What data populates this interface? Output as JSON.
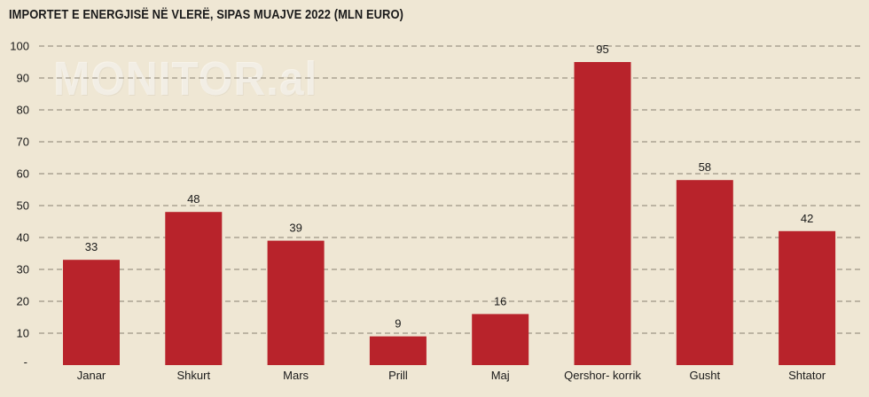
{
  "chart_data": {
    "type": "bar",
    "title": "IMPORTET E ENERGJISË NË VLERË, SIPAS MUAJVE 2022 (MLN EURO)",
    "watermark": "MONITOR.al",
    "categories": [
      "Janar",
      "Shkurt",
      "Mars",
      "Prill",
      "Maj",
      "Qershor- korrik",
      "Gusht",
      "Shtator"
    ],
    "values": [
      33,
      48,
      39,
      9,
      16,
      95,
      58,
      42
    ],
    "ylim": [
      0,
      100
    ],
    "yticks": [
      10,
      20,
      30,
      40,
      50,
      60,
      70,
      80,
      90,
      100
    ],
    "zero_tick_label": "-",
    "grid": true,
    "bar_color": "#b8232b"
  }
}
